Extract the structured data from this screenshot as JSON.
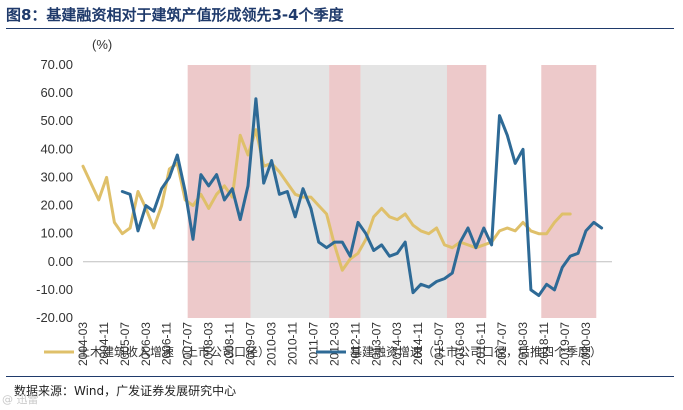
{
  "header": {
    "title": "图8：基建融资相对于建筑产值形成领先3-4个季度"
  },
  "footer": {
    "source": "数据来源：Wind，广发证券发展研究中心",
    "watermark": "@ 迅雷"
  },
  "colors": {
    "construction": "#dfc06a",
    "financing": "#2e6a96",
    "pink_band": "#edc9ca",
    "gray_band": "#e4e4e4",
    "title": "#1f3a6b"
  },
  "chart_data": {
    "type": "line",
    "unit_label": "(%)",
    "ylim": [
      -20,
      70
    ],
    "yticks": [
      -20,
      -10,
      0,
      10,
      20,
      30,
      40,
      50,
      60,
      70
    ],
    "ytick_labels": [
      "-20.00",
      "-10.00",
      "0.00",
      "10.00",
      "20.00",
      "30.00",
      "40.00",
      "50.00",
      "60.00",
      "70.00"
    ],
    "xlim": [
      2004.17,
      2021.0
    ],
    "xtick_labels": [
      "2004-03",
      "2004-11",
      "2005-07",
      "2006-03",
      "2006-11",
      "2007-07",
      "2008-03",
      "2008-11",
      "2009-07",
      "2010-03",
      "2010-11",
      "2011-07",
      "2012-03",
      "2012-11",
      "2013-07",
      "2014-03",
      "2014-11",
      "2015-07",
      "2016-03",
      "2016-11",
      "2017-07",
      "2018-03",
      "2018-11",
      "2019-07",
      "2020-03"
    ],
    "bands": [
      {
        "start": 2007.5,
        "end": 2009.5,
        "color": "pink"
      },
      {
        "start": 2009.5,
        "end": 2012.0,
        "color": "gray"
      },
      {
        "start": 2012.0,
        "end": 2013.0,
        "color": "pink"
      },
      {
        "start": 2013.0,
        "end": 2015.75,
        "color": "gray"
      },
      {
        "start": 2015.75,
        "end": 2017.0,
        "color": "pink"
      },
      {
        "start": 2018.75,
        "end": 2020.5,
        "color": "pink"
      }
    ],
    "series": [
      {
        "name": "土木建筑收入增速（上市公司口径）",
        "points": [
          [
            2004.17,
            34
          ],
          [
            2004.42,
            28
          ],
          [
            2004.67,
            22
          ],
          [
            2004.92,
            30
          ],
          [
            2005.17,
            14
          ],
          [
            2005.42,
            10
          ],
          [
            2005.67,
            12
          ],
          [
            2005.92,
            25
          ],
          [
            2006.17,
            19
          ],
          [
            2006.42,
            12
          ],
          [
            2006.67,
            20
          ],
          [
            2006.92,
            33
          ],
          [
            2007.17,
            35
          ],
          [
            2007.42,
            22
          ],
          [
            2007.67,
            20
          ],
          [
            2007.92,
            24
          ],
          [
            2008.17,
            19
          ],
          [
            2008.42,
            24
          ],
          [
            2008.67,
            27
          ],
          [
            2008.92,
            23
          ],
          [
            2009.17,
            45
          ],
          [
            2009.42,
            38
          ],
          [
            2009.67,
            47
          ],
          [
            2009.92,
            34
          ],
          [
            2010.17,
            35
          ],
          [
            2010.42,
            32
          ],
          [
            2010.67,
            28
          ],
          [
            2010.92,
            24
          ],
          [
            2011.17,
            23
          ],
          [
            2011.42,
            23
          ],
          [
            2011.67,
            20
          ],
          [
            2011.92,
            17
          ],
          [
            2012.17,
            6
          ],
          [
            2012.42,
            -3
          ],
          [
            2012.67,
            1
          ],
          [
            2012.92,
            3
          ],
          [
            2013.17,
            8
          ],
          [
            2013.42,
            16
          ],
          [
            2013.67,
            19
          ],
          [
            2013.92,
            16
          ],
          [
            2014.17,
            15
          ],
          [
            2014.42,
            17
          ],
          [
            2014.67,
            13
          ],
          [
            2014.92,
            11
          ],
          [
            2015.17,
            10
          ],
          [
            2015.42,
            12
          ],
          [
            2015.67,
            6
          ],
          [
            2015.92,
            5
          ],
          [
            2016.17,
            7
          ],
          [
            2016.42,
            6
          ],
          [
            2016.67,
            5
          ],
          [
            2016.92,
            6
          ],
          [
            2017.17,
            7
          ],
          [
            2017.42,
            11
          ],
          [
            2017.67,
            12
          ],
          [
            2017.92,
            11
          ],
          [
            2018.17,
            14
          ],
          [
            2018.42,
            11
          ],
          [
            2018.67,
            10
          ],
          [
            2018.92,
            10
          ],
          [
            2019.17,
            14
          ],
          [
            2019.42,
            17
          ],
          [
            2019.67,
            17
          ]
        ]
      },
      {
        "name": "基建融资增速（上市公司口径，后推四个季度）",
        "points": [
          [
            2005.42,
            25
          ],
          [
            2005.67,
            24
          ],
          [
            2005.92,
            11
          ],
          [
            2006.17,
            20
          ],
          [
            2006.42,
            18
          ],
          [
            2006.67,
            26
          ],
          [
            2006.92,
            30
          ],
          [
            2007.17,
            38
          ],
          [
            2007.42,
            25
          ],
          [
            2007.67,
            8
          ],
          [
            2007.92,
            31
          ],
          [
            2008.17,
            27
          ],
          [
            2008.42,
            31
          ],
          [
            2008.67,
            22
          ],
          [
            2008.92,
            26
          ],
          [
            2009.17,
            15
          ],
          [
            2009.42,
            27
          ],
          [
            2009.67,
            58
          ],
          [
            2009.92,
            28
          ],
          [
            2010.17,
            36
          ],
          [
            2010.42,
            24
          ],
          [
            2010.67,
            25
          ],
          [
            2010.92,
            16
          ],
          [
            2011.17,
            26
          ],
          [
            2011.42,
            19
          ],
          [
            2011.67,
            7
          ],
          [
            2011.92,
            5
          ],
          [
            2012.17,
            7
          ],
          [
            2012.42,
            7
          ],
          [
            2012.67,
            2
          ],
          [
            2012.92,
            14
          ],
          [
            2013.17,
            10
          ],
          [
            2013.42,
            4
          ],
          [
            2013.67,
            6
          ],
          [
            2013.92,
            2
          ],
          [
            2014.17,
            3
          ],
          [
            2014.42,
            7
          ],
          [
            2014.67,
            -11
          ],
          [
            2014.92,
            -8
          ],
          [
            2015.17,
            -9
          ],
          [
            2015.42,
            -7
          ],
          [
            2015.67,
            -6
          ],
          [
            2015.92,
            -4
          ],
          [
            2016.17,
            7
          ],
          [
            2016.42,
            12
          ],
          [
            2016.67,
            5
          ],
          [
            2016.92,
            12
          ],
          [
            2017.17,
            6
          ],
          [
            2017.42,
            52
          ],
          [
            2017.67,
            45
          ],
          [
            2017.92,
            35
          ],
          [
            2018.17,
            40
          ],
          [
            2018.42,
            -10
          ],
          [
            2018.67,
            -12
          ],
          [
            2018.92,
            -8
          ],
          [
            2019.17,
            -10
          ],
          [
            2019.42,
            -2
          ],
          [
            2019.67,
            2
          ],
          [
            2019.92,
            3
          ],
          [
            2020.17,
            11
          ],
          [
            2020.42,
            14
          ],
          [
            2020.67,
            12
          ]
        ]
      }
    ]
  }
}
